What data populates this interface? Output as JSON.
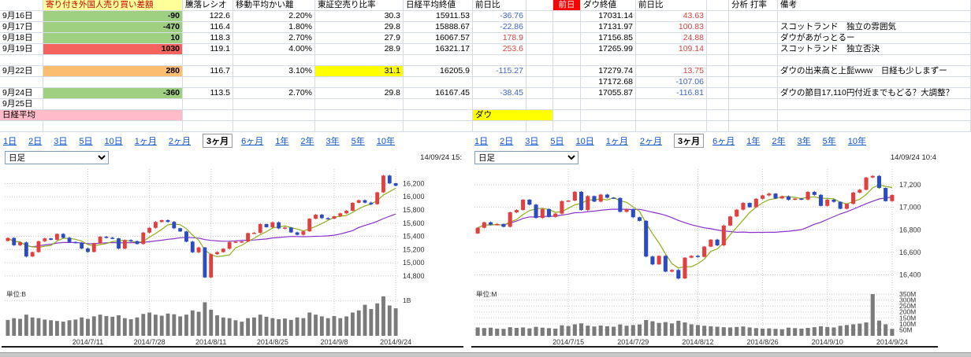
{
  "colors": {
    "grid_line": "#d6dce6",
    "chart_grid": "#c9c9c9",
    "positive_text": "#d64541",
    "negative_text": "#3f62c9",
    "tab_link": "#1155cc",
    "candle_up": "#e04040",
    "candle_down": "#2b4bbf",
    "ma_short": "#8fae1b",
    "ma_long": "#8a33cc",
    "volume_bar": "#7a7a7a",
    "axis_text": "#333333"
  },
  "table": {
    "header_cells": [
      {
        "c": 1,
        "t": "寄り付き外国人売り買い差額",
        "bg": "#ffff99",
        "fg": "#c00000",
        "n": "foreign-diff-header"
      },
      {
        "c": 2,
        "t": "騰落レシオ",
        "n": "updown-ratio-header"
      },
      {
        "c": 3,
        "t": "移動平均かい離",
        "n": "ma-deviation-header"
      },
      {
        "c": 4,
        "t": "東証空売り比率",
        "n": "short-ratio-header"
      },
      {
        "c": 5,
        "t": "日経平均終値",
        "n": "nikkei-close-header"
      },
      {
        "c": 6,
        "t": "前日比",
        "n": "nikkei-change-header"
      },
      {
        "c": 8,
        "t": "前日",
        "bg": "#ff0000",
        "fg": "#ffffff",
        "al": "c",
        "n": "prev-day-header"
      },
      {
        "c": 9,
        "t": "ダウ終値",
        "n": "dow-close-header"
      },
      {
        "c": 10,
        "t": "前日比",
        "n": "dow-change-header"
      },
      {
        "c": 12,
        "t": "分析 打率",
        "n": "analysis-header"
      },
      {
        "c": 13,
        "t": "備考",
        "n": "note-header"
      }
    ],
    "rows": [
      {
        "cells": [
          {
            "c": 0,
            "t": "9月16日",
            "n": "date-cell"
          },
          {
            "c": 1,
            "t": "-90",
            "bg": "#9ed07f",
            "al": "r",
            "b": true
          },
          {
            "c": 2,
            "t": "122.6",
            "al": "r"
          },
          {
            "c": 3,
            "t": "2.20%",
            "al": "r"
          },
          {
            "c": 4,
            "t": "30.3",
            "al": "r"
          },
          {
            "c": 5,
            "t": "15911.53",
            "al": "r"
          },
          {
            "c": 6,
            "t": "-36.76",
            "al": "r",
            "fg": "down"
          },
          {
            "c": 9,
            "t": "17031.14",
            "al": "r"
          },
          {
            "c": 10,
            "t": "43.63",
            "al": "r",
            "fg": "up"
          }
        ]
      },
      {
        "cells": [
          {
            "c": 0,
            "t": "9月17日",
            "n": "date-cell"
          },
          {
            "c": 1,
            "t": "-470",
            "bg": "#9ed07f",
            "al": "r",
            "b": true
          },
          {
            "c": 2,
            "t": "116.4",
            "al": "r"
          },
          {
            "c": 3,
            "t": "1.80%",
            "al": "r"
          },
          {
            "c": 4,
            "t": "29.8",
            "al": "r"
          },
          {
            "c": 5,
            "t": "15888.67",
            "al": "r"
          },
          {
            "c": 6,
            "t": "-22.86",
            "al": "r",
            "fg": "down"
          },
          {
            "c": 9,
            "t": "17131.97",
            "al": "r"
          },
          {
            "c": 10,
            "t": "100.83",
            "al": "r",
            "fg": "up"
          },
          {
            "c": 13,
            "t": "スコットランド　独立の雰囲気",
            "n": "note-cell"
          }
        ]
      },
      {
        "cells": [
          {
            "c": 0,
            "t": "9月18日",
            "n": "date-cell"
          },
          {
            "c": 1,
            "t": "10",
            "bg": "#9ed07f",
            "al": "r",
            "b": true
          },
          {
            "c": 2,
            "t": "118.3",
            "al": "r"
          },
          {
            "c": 3,
            "t": "2.70%",
            "al": "r"
          },
          {
            "c": 4,
            "t": "27.9",
            "al": "r"
          },
          {
            "c": 5,
            "t": "16067.57",
            "al": "r"
          },
          {
            "c": 6,
            "t": "178.9",
            "al": "r",
            "fg": "up"
          },
          {
            "c": 9,
            "t": "17156.85",
            "al": "r"
          },
          {
            "c": 10,
            "t": "24.88",
            "al": "r",
            "fg": "up"
          },
          {
            "c": 13,
            "t": "ダウがあがっとるー",
            "n": "note-cell"
          }
        ]
      },
      {
        "cells": [
          {
            "c": 0,
            "t": "9月19日",
            "n": "date-cell"
          },
          {
            "c": 1,
            "t": "1030",
            "bg": "#f4635e",
            "al": "r",
            "b": true
          },
          {
            "c": 2,
            "t": "119.1",
            "al": "r"
          },
          {
            "c": 3,
            "t": "4.00%",
            "al": "r"
          },
          {
            "c": 4,
            "t": "28.9",
            "al": "r"
          },
          {
            "c": 5,
            "t": "16321.17",
            "al": "r"
          },
          {
            "c": 6,
            "t": "253.6",
            "al": "r",
            "fg": "up"
          },
          {
            "c": 9,
            "t": "17265.99",
            "al": "r"
          },
          {
            "c": 10,
            "t": "109.14",
            "al": "r",
            "fg": "up"
          },
          {
            "c": 13,
            "t": "スコットランド　独立否決",
            "n": "note-cell"
          }
        ]
      },
      {
        "cells": []
      },
      {
        "cells": [
          {
            "c": 0,
            "t": "9月22日",
            "n": "date-cell"
          },
          {
            "c": 1,
            "t": "280",
            "bg": "#fbbd6e",
            "al": "r",
            "b": true
          },
          {
            "c": 2,
            "t": "116.7",
            "al": "r"
          },
          {
            "c": 3,
            "t": "3.10%",
            "al": "r"
          },
          {
            "c": 4,
            "t": "31.1",
            "bg": "#ffff00",
            "al": "r"
          },
          {
            "c": 5,
            "t": "16205.9",
            "al": "r"
          },
          {
            "c": 6,
            "t": "-115.27",
            "al": "r",
            "fg": "down"
          },
          {
            "c": 9,
            "t": "17279.74",
            "al": "r"
          },
          {
            "c": 10,
            "t": "13.75",
            "al": "r",
            "fg": "up"
          },
          {
            "c": 13,
            "t": "ダウの出来高と上髭www　日経も少しまずー",
            "n": "note-cell"
          }
        ]
      },
      {
        "cells": [
          {
            "c": 9,
            "t": "17172.68",
            "al": "r"
          },
          {
            "c": 10,
            "t": "-107.06",
            "al": "r",
            "fg": "down"
          }
        ]
      },
      {
        "cells": [
          {
            "c": 0,
            "t": "9月24日",
            "n": "date-cell"
          },
          {
            "c": 1,
            "t": "-360",
            "bg": "#9ed07f",
            "al": "r",
            "b": true
          },
          {
            "c": 2,
            "t": "113.5",
            "al": "r"
          },
          {
            "c": 3,
            "t": "2.70%",
            "al": "r"
          },
          {
            "c": 4,
            "t": "29.8",
            "al": "r"
          },
          {
            "c": 5,
            "t": "16167.45",
            "al": "r"
          },
          {
            "c": 6,
            "t": "-38.45",
            "al": "r",
            "fg": "down"
          },
          {
            "c": 9,
            "t": "17055.87",
            "al": "r"
          },
          {
            "c": 10,
            "t": "-116.81",
            "al": "r",
            "fg": "down"
          },
          {
            "c": 13,
            "t": "ダウの節目17,110円付近までもどる？大調整？",
            "n": "note-cell"
          }
        ]
      },
      {
        "cells": [
          {
            "c": 0,
            "t": "9月25日",
            "n": "date-cell"
          }
        ]
      },
      {
        "cells": [
          {
            "c": 0,
            "t": "日経平均",
            "bg": "#ffbcc8",
            "span": 2,
            "n": "nikkei-section-label"
          },
          {
            "c": 6,
            "t": "ダウ",
            "bg": "#ffff00",
            "span": 2,
            "n": "dow-section-label"
          }
        ]
      },
      {
        "cells": []
      }
    ]
  },
  "tabs": {
    "items": [
      "1日",
      "2日",
      "3日",
      "5日",
      "10日",
      "1ヶ月",
      "2ヶ月",
      "3ヶ月",
      "6ヶ月",
      "1年",
      "2年",
      "3年",
      "5年",
      "10年"
    ],
    "selected": "3ヶ月"
  },
  "chart_data": [
    {
      "type": "candlestick",
      "name": "nikkei",
      "title": "日経平均",
      "period_label": "日足",
      "timestamp": "14/09/24 15:",
      "unit_label": "単位:B",
      "ylim": [
        14680,
        16420
      ],
      "y_ticks": [
        16200,
        16000,
        15800,
        15600,
        15400,
        15200,
        15000,
        14800
      ],
      "vol_max": 1.25,
      "vol_ticks": [
        {
          "value": 1,
          "label": "1B"
        }
      ],
      "x_labels": [
        "2014/7/11",
        "2014/7/28",
        "2014/8/11",
        "2014/8/25",
        "2014/9/8",
        "2014/9/24"
      ],
      "x_label_idx": [
        13,
        23,
        33,
        43,
        53,
        63
      ],
      "closes": [
        15376,
        15266,
        15308,
        15095,
        15162,
        15326,
        15369,
        15348,
        15437,
        15379,
        15314,
        15302,
        15216,
        15164,
        15296,
        15395,
        15379,
        15370,
        15215,
        15343,
        15328,
        15284,
        15457,
        15529,
        15618,
        15646,
        15620,
        15523,
        15474,
        15320,
        15159,
        15232,
        14778,
        15130,
        15161,
        15213,
        15314,
        15318,
        15322,
        15449,
        15454,
        15586,
        15539,
        15613,
        15521,
        15534,
        15460,
        15424,
        15476,
        15668,
        15728,
        15676,
        15668,
        15705,
        15749,
        15788,
        15909,
        15948,
        15911,
        15888,
        16067,
        16321,
        16205,
        16167
      ],
      "volumes": [
        0.45,
        0.5,
        0.48,
        0.6,
        0.52,
        0.5,
        0.46,
        0.44,
        0.42,
        0.4,
        0.44,
        0.46,
        0.52,
        0.48,
        0.55,
        0.6,
        0.56,
        0.54,
        0.58,
        0.5,
        0.47,
        0.52,
        0.62,
        0.66,
        0.6,
        0.57,
        0.63,
        0.61,
        0.55,
        0.6,
        0.72,
        0.68,
        0.95,
        0.74,
        0.58,
        0.52,
        0.5,
        0.44,
        0.4,
        0.5,
        0.52,
        0.6,
        0.54,
        0.5,
        0.47,
        0.49,
        0.45,
        0.52,
        0.5,
        0.66,
        0.6,
        0.55,
        0.5,
        0.56,
        0.5,
        0.55,
        0.66,
        0.72,
        0.88,
        0.76,
        0.92,
        1.12,
        0.86,
        0.78
      ]
    },
    {
      "type": "candlestick",
      "name": "dow",
      "title": "ダウ",
      "period_label": "日足",
      "timestamp": "14/09/24 10:4",
      "unit_label": "単位:M",
      "ylim": [
        16320,
        17340
      ],
      "y_ticks": [
        17200,
        17000,
        16800,
        16600,
        16400
      ],
      "vol_max": 370,
      "vol_ticks": [
        {
          "value": 350,
          "label": "350M"
        },
        {
          "value": 300,
          "label": "300M"
        },
        {
          "value": 250,
          "label": "250M"
        },
        {
          "value": 200,
          "label": "200M"
        },
        {
          "value": 150,
          "label": "150M"
        },
        {
          "value": 100,
          "label": "100M"
        },
        {
          "value": 50,
          "label": "50M"
        }
      ],
      "x_labels": [
        "2014/7/15",
        "2014/7/29",
        "2014/8/12",
        "2014/8/26",
        "2014/9/10",
        "2014/9/24"
      ],
      "x_label_idx": [
        14,
        24,
        34,
        44,
        54,
        64
      ],
      "closes": [
        16818,
        16867,
        16846,
        16852,
        16827,
        16956,
        16976,
        17068,
        17024,
        16906,
        16985,
        16915,
        16944,
        17055,
        17060,
        17138,
        16976,
        17100,
        17051,
        17113,
        17086,
        17083,
        16960,
        16982,
        16912,
        16880,
        16563,
        16493,
        16569,
        16429,
        16443,
        16368,
        16553,
        16569,
        16560,
        16651,
        16713,
        16662,
        16838,
        16919,
        16979,
        17039,
        17001,
        17076,
        17106,
        17122,
        17079,
        17098,
        17067,
        17078,
        17069,
        17137,
        17111,
        17013,
        17068,
        17049,
        16987,
        17031,
        17131,
        17156,
        17265,
        17279,
        17172,
        17055,
        17110
      ],
      "volumes": [
        70,
        65,
        68,
        60,
        58,
        72,
        66,
        70,
        62,
        75,
        68,
        64,
        60,
        88,
        82,
        96,
        104,
        85,
        78,
        86,
        80,
        76,
        95,
        84,
        90,
        95,
        132,
        122,
        108,
        115,
        104,
        126,
        112,
        96,
        90,
        84,
        80,
        76,
        72,
        70,
        74,
        78,
        70,
        64,
        60,
        62,
        58,
        55,
        68,
        64,
        60,
        66,
        72,
        80,
        74,
        70,
        84,
        90,
        96,
        102,
        112,
        350,
        128,
        96,
        58
      ]
    }
  ]
}
